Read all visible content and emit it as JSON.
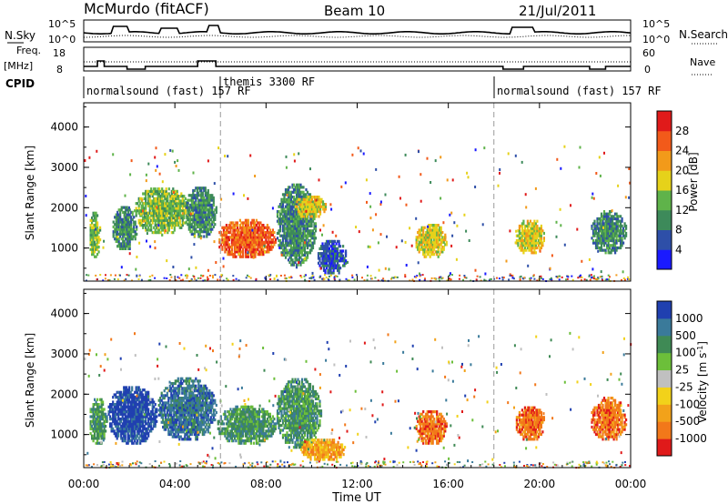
{
  "header": {
    "title": "McMurdo (fitACF)",
    "beam": "Beam 10",
    "date": "21/Jul/2011"
  },
  "noise_panel": {
    "left_label": "N.Sky",
    "right_label": "N.Search",
    "left_ticks": [
      "10^5",
      "10^0"
    ],
    "right_ticks": [
      "10^5",
      "10^0"
    ]
  },
  "freq_panel": {
    "left_label_1": "Freq.",
    "left_label_2": "[MHz]",
    "right_label": "Nave",
    "left_ticks": [
      "18",
      "8"
    ],
    "right_ticks": [
      "60",
      "0"
    ]
  },
  "cpid": {
    "label": "CPID",
    "segments": [
      {
        "start": "00:00",
        "text": "normalsound (fast) 157 RF"
      },
      {
        "start": "06:00",
        "text": "themis 3300 RF"
      },
      {
        "start": "18:00",
        "text": "normalsound (fast) 157 RF"
      }
    ]
  },
  "colors": {
    "power": [
      "#1a1aff",
      "#2e4fa8",
      "#3d8a5a",
      "#5fb34a",
      "#e6d21a",
      "#f29a1a",
      "#f25a1a",
      "#e01a1a"
    ],
    "velocity": [
      "#2040b0",
      "#3a7a9a",
      "#3f8a55",
      "#6cbf3a",
      "#c0c0c0",
      "#f2d21a",
      "#f2a21a",
      "#f2781a",
      "#e01a1a"
    ]
  },
  "chart_data": [
    {
      "type": "heatmap",
      "title": "",
      "ylabel": "Slant Range [km]",
      "xlabel": "Time UT",
      "ylim": [
        180,
        4600
      ],
      "xlim": [
        "00:00",
        "24:00"
      ],
      "y_ticks": [
        "1000",
        "2000",
        "3000",
        "4000"
      ],
      "x_ticks": [
        "00:00",
        "04:00",
        "08:00",
        "12:00",
        "16:00",
        "20:00",
        "00:00"
      ],
      "colorbar_label": "Power [dB]",
      "colorbar_ticks": [
        "4",
        "8",
        "12",
        "16",
        "20",
        "24",
        "28"
      ],
      "colorbar_range": [
        0,
        30
      ],
      "regions": [
        {
          "t": [
            0.2,
            0.7
          ],
          "r": [
            700,
            1900
          ],
          "level": 11
        },
        {
          "t": [
            1.2,
            2.3
          ],
          "r": [
            900,
            2000
          ],
          "level": 9
        },
        {
          "t": [
            2.2,
            4.6
          ],
          "r": [
            1300,
            2500
          ],
          "level": 13
        },
        {
          "t": [
            4.4,
            5.8
          ],
          "r": [
            1200,
            2500
          ],
          "level": 8
        },
        {
          "t": [
            5.8,
            8.4
          ],
          "r": [
            700,
            1700
          ],
          "level": 26
        },
        {
          "t": [
            8.4,
            10.2
          ],
          "r": [
            500,
            2600
          ],
          "level": 7
        },
        {
          "t": [
            9.2,
            10.6
          ],
          "r": [
            1700,
            2300
          ],
          "level": 15
        },
        {
          "t": [
            10.2,
            11.5
          ],
          "r": [
            300,
            1200
          ],
          "level": 6
        },
        {
          "t": [
            14.5,
            15.9
          ],
          "r": [
            700,
            1600
          ],
          "level": 18
        },
        {
          "t": [
            18.9,
            20.2
          ],
          "r": [
            800,
            1700
          ],
          "level": 17
        },
        {
          "t": [
            22.2,
            23.8
          ],
          "r": [
            800,
            1900
          ],
          "level": 9
        }
      ]
    },
    {
      "type": "heatmap",
      "title": "",
      "ylabel": "Slant Range [km]",
      "xlabel": "Time UT",
      "ylim": [
        180,
        4600
      ],
      "xlim": [
        "00:00",
        "24:00"
      ],
      "y_ticks": [
        "1000",
        "2000",
        "3000",
        "4000"
      ],
      "x_ticks": [
        "00:00",
        "04:00",
        "08:00",
        "12:00",
        "16:00",
        "20:00",
        "00:00"
      ],
      "colorbar_label": "Velocity [m s^-1]",
      "colorbar_ticks": [
        "1000",
        "500",
        "100",
        "25",
        "-25",
        "-100",
        "-500",
        "-1000"
      ],
      "regions": [
        {
          "t": [
            0.2,
            1.0
          ],
          "r": [
            700,
            1900
          ],
          "level": 2
        },
        {
          "t": [
            1.0,
            3.2
          ],
          "r": [
            700,
            2200
          ],
          "level": 0
        },
        {
          "t": [
            3.2,
            5.8
          ],
          "r": [
            800,
            2400
          ],
          "level": 1
        },
        {
          "t": [
            5.8,
            8.4
          ],
          "r": [
            700,
            1700
          ],
          "level": 2
        },
        {
          "t": [
            8.4,
            10.4
          ],
          "r": [
            600,
            2400
          ],
          "level": 2
        },
        {
          "t": [
            9.5,
            11.5
          ],
          "r": [
            300,
            900
          ],
          "level": 6
        },
        {
          "t": [
            14.5,
            15.9
          ],
          "r": [
            700,
            1600
          ],
          "level": 7
        },
        {
          "t": [
            18.9,
            20.2
          ],
          "r": [
            800,
            1700
          ],
          "level": 7
        },
        {
          "t": [
            22.2,
            23.8
          ],
          "r": [
            800,
            1900
          ],
          "level": 7
        }
      ]
    }
  ],
  "axis": {
    "xlabel": "Time UT"
  }
}
